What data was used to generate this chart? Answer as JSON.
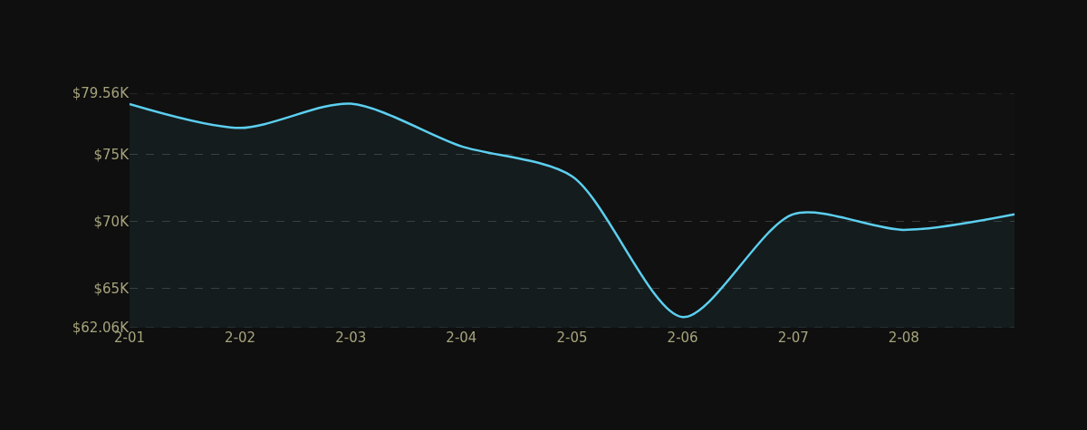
{
  "chart_data": {
    "type": "area",
    "categories": [
      "2-01",
      "2-02",
      "2-03",
      "2-04",
      "2-05",
      "2-06",
      "2-07",
      "2-08",
      null
    ],
    "series": [
      {
        "color": "#5ccfef",
        "values": [
          78.75,
          76.97,
          78.78,
          75.6,
          73.36,
          62.85,
          70.53,
          69.36,
          70.53
        ]
      }
    ],
    "ylim": [
      62.06,
      79.56
    ],
    "yticks": [
      {
        "value": 62.06,
        "label": "$62.06K"
      },
      {
        "value": 65,
        "label": "$65K"
      },
      {
        "value": 70,
        "label": "$70K"
      },
      {
        "value": 75,
        "label": "$75K"
      },
      {
        "value": 79.56,
        "label": "$79.56K"
      }
    ],
    "grid": "y",
    "marker": "none",
    "line_style": "solid"
  }
}
